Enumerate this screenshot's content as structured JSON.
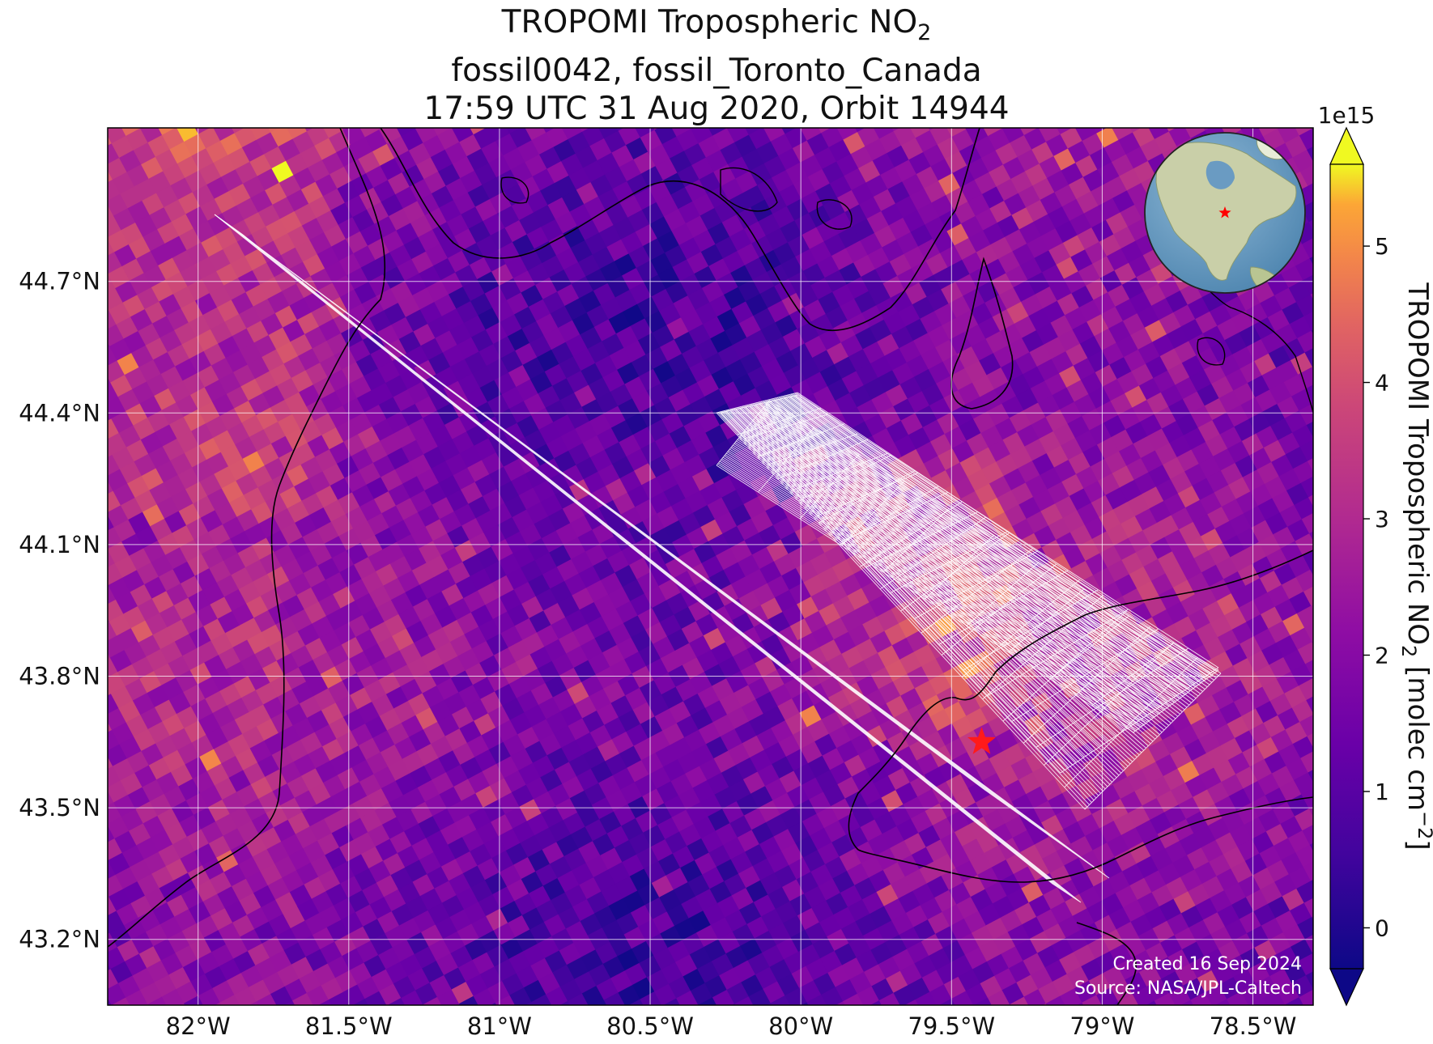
{
  "title": {
    "line1_main": "TROPOMI Tropospheric NO",
    "line1_sub": "2",
    "line2": "fossil0042, fossil_Toronto_Canada",
    "line3": "17:59 UTC 31 Aug 2020, Orbit 14944"
  },
  "map": {
    "lon_range": [
      -82.3,
      -78.3
    ],
    "lat_range": [
      43.05,
      45.05
    ],
    "lon_ticks": [
      {
        "value": -82.0,
        "label": "82°W"
      },
      {
        "value": -81.5,
        "label": "81.5°W"
      },
      {
        "value": -81.0,
        "label": "81°W"
      },
      {
        "value": -80.5,
        "label": "80.5°W"
      },
      {
        "value": -80.0,
        "label": "80°W"
      },
      {
        "value": -79.5,
        "label": "79.5°W"
      },
      {
        "value": -79.0,
        "label": "79°W"
      },
      {
        "value": -78.5,
        "label": "78.5°W"
      }
    ],
    "lat_ticks": [
      {
        "value": 44.7,
        "label": "44.7°N"
      },
      {
        "value": 44.4,
        "label": "44.4°N"
      },
      {
        "value": 44.1,
        "label": "44.1°N"
      },
      {
        "value": 43.8,
        "label": "43.8°N"
      },
      {
        "value": 43.5,
        "label": "43.5°N"
      },
      {
        "value": 43.2,
        "label": "43.2°N"
      }
    ],
    "target_site": {
      "lon": -79.4,
      "lat": 43.65,
      "marker": "star",
      "color": "#ff1a1a"
    },
    "grid_color": "#ffffff",
    "coastline_color": "#000000"
  },
  "colorbar": {
    "label_main": "TROPOMI Tropospheric NO",
    "label_sub": "2",
    "label_units": " [molec cm",
    "label_exp": "−2",
    "label_end": "]",
    "multiplier": "1e15",
    "range": [
      -0.3,
      5.6
    ],
    "ticks": [
      {
        "value": 0,
        "label": "0"
      },
      {
        "value": 1,
        "label": "1"
      },
      {
        "value": 2,
        "label": "2"
      },
      {
        "value": 3,
        "label": "3"
      },
      {
        "value": 4,
        "label": "4"
      },
      {
        "value": 5,
        "label": "5"
      }
    ],
    "colormap": "plasma"
  },
  "inset_globe": {
    "icon": "globe-icon",
    "marker_color": "#ff0000"
  },
  "credits": {
    "created": "Created 16 Sep 2024",
    "source": "Source: NASA/JPL-Caltech"
  }
}
